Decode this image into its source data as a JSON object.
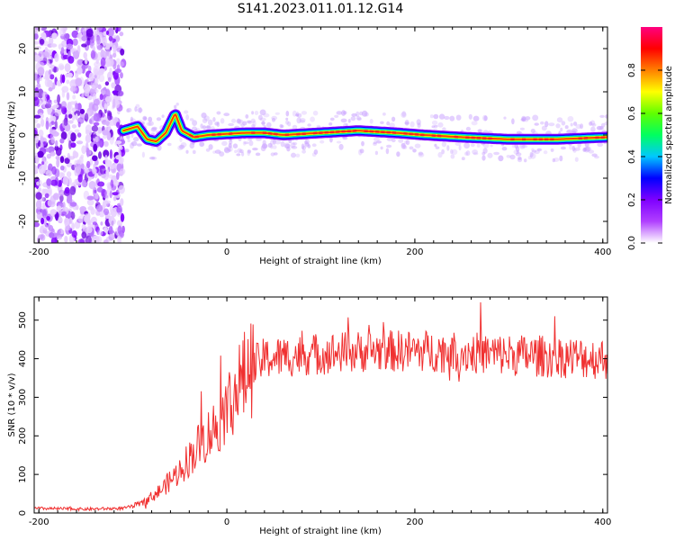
{
  "title": "S141.2023.011.01.12.G14",
  "chart_data": [
    {
      "type": "heatmap",
      "xlabel": "Height of straight line (km)",
      "ylabel": "Frequency (Hz)",
      "xlim": [
        -205,
        405
      ],
      "ylim": [
        -25,
        25
      ],
      "x_ticks": [
        "-200",
        "0",
        "200",
        "400"
      ],
      "y_ticks": [
        "-20",
        "-10",
        "0",
        "10",
        "20"
      ],
      "noise_region_x": [
        -205,
        -110
      ],
      "signal_ridge": [
        {
          "x": -110,
          "y": 1
        },
        {
          "x": -95,
          "y": 2
        },
        {
          "x": -85,
          "y": -1
        },
        {
          "x": -75,
          "y": -1.5
        },
        {
          "x": -65,
          "y": 0.5
        },
        {
          "x": -55,
          "y": 5
        },
        {
          "x": -48,
          "y": 1
        },
        {
          "x": -35,
          "y": -0.5
        },
        {
          "x": -20,
          "y": 0
        },
        {
          "x": 20,
          "y": 0.5
        },
        {
          "x": 40,
          "y": 0.5
        },
        {
          "x": 60,
          "y": 0
        },
        {
          "x": 100,
          "y": 0.5
        },
        {
          "x": 140,
          "y": 1
        },
        {
          "x": 180,
          "y": 0.5
        },
        {
          "x": 210,
          "y": 0
        },
        {
          "x": 250,
          "y": -0.5
        },
        {
          "x": 300,
          "y": -1
        },
        {
          "x": 350,
          "y": -1
        },
        {
          "x": 405,
          "y": -0.5
        }
      ],
      "colorbar": {
        "label": "Normalized spectral amplitude",
        "ticks": [
          "0.0",
          "0.2",
          "0.4",
          "0.6",
          "0.8"
        ],
        "range": [
          0,
          1
        ],
        "colors": [
          "#ffffff",
          "#b040ff",
          "#7f00ff",
          "#0000ff",
          "#00c8ff",
          "#00ff60",
          "#60ff00",
          "#ffff00",
          "#ff8000",
          "#ff0000",
          "#ff0080"
        ]
      }
    },
    {
      "type": "line",
      "xlabel": "Height of straight line (km)",
      "ylabel": "SNR (10 * v/v)",
      "xlim": [
        -205,
        405
      ],
      "ylim": [
        0,
        560
      ],
      "x_ticks": [
        "-200",
        "0",
        "200",
        "400"
      ],
      "y_ticks": [
        "0",
        "100",
        "200",
        "300",
        "400",
        "500"
      ],
      "line_color": "#f03030",
      "trend": [
        {
          "x": -205,
          "y": 12
        },
        {
          "x": -150,
          "y": 10
        },
        {
          "x": -110,
          "y": 12
        },
        {
          "x": -90,
          "y": 25
        },
        {
          "x": -70,
          "y": 60
        },
        {
          "x": -50,
          "y": 110
        },
        {
          "x": -30,
          "y": 175
        },
        {
          "x": -10,
          "y": 230
        },
        {
          "x": 10,
          "y": 320
        },
        {
          "x": 25,
          "y": 375
        },
        {
          "x": 40,
          "y": 400
        },
        {
          "x": 80,
          "y": 410
        },
        {
          "x": 150,
          "y": 420
        },
        {
          "x": 220,
          "y": 420
        },
        {
          "x": 300,
          "y": 410
        },
        {
          "x": 405,
          "y": 400
        }
      ]
    }
  ]
}
